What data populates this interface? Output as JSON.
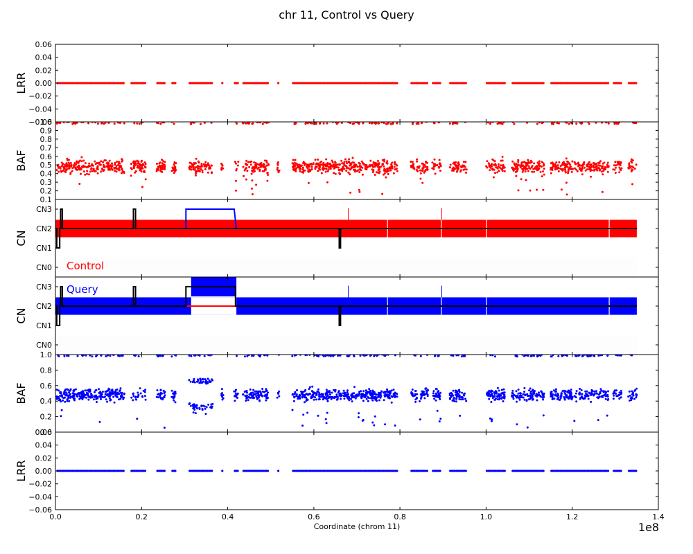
{
  "figure": {
    "title": "chr 11, Control vs Query",
    "xlabel": "Coordinate (chrom 11)",
    "x_offset_label": "1e8",
    "x_ticks": [
      "0.0",
      "0.2",
      "0.4",
      "0.6",
      "0.8",
      "1.0",
      "1.2",
      "1.4"
    ]
  },
  "colors": {
    "control": "#ff0000",
    "query": "#0000ff",
    "consensus": "#000000"
  },
  "chart_data": [
    {
      "name": "control-lrr",
      "type": "scatter",
      "ylabel": "LRR",
      "color": "#ff0000",
      "ylim": [
        -0.06,
        0.06
      ],
      "yticks": [
        "−0.06",
        "−0.04",
        "−0.02",
        "0.00",
        "0.02",
        "0.04",
        "0.06"
      ],
      "xlim": [
        0,
        140000000
      ],
      "value": 0.0
    },
    {
      "name": "control-baf",
      "type": "scatter",
      "ylabel": "BAF",
      "color": "#ff0000",
      "ylim": [
        0.1,
        1.0
      ],
      "yticks": [
        "0.1",
        "0.2",
        "0.3",
        "0.4",
        "0.5",
        "0.6",
        "0.7",
        "0.8",
        "0.9",
        "1.0"
      ],
      "xlim": [
        0,
        140000000
      ],
      "center": 0.48
    },
    {
      "name": "control-cn",
      "type": "area",
      "ylabel": "CN",
      "label": "Control",
      "color": "#ff0000",
      "ylim": [
        -0.5,
        3.5
      ],
      "yticks": [
        "CN0",
        "CN1",
        "CN2",
        "CN3"
      ],
      "xlim": [
        0,
        140000000
      ],
      "band": [
        1.55,
        2.45
      ],
      "consensus": [
        {
          "x": 0,
          "y": 2
        },
        {
          "x": 300000,
          "y": 2
        },
        {
          "x": 300000,
          "y": 1
        },
        {
          "x": 1000000,
          "y": 1
        },
        {
          "x": 1000000,
          "y": 2
        },
        {
          "x": 1200000,
          "y": 2
        },
        {
          "x": 1200000,
          "y": 3
        },
        {
          "x": 1600000,
          "y": 3
        },
        {
          "x": 1600000,
          "y": 2
        },
        {
          "x": 18100000,
          "y": 2
        },
        {
          "x": 18100000,
          "y": 3
        },
        {
          "x": 18600000,
          "y": 3
        },
        {
          "x": 18600000,
          "y": 2
        },
        {
          "x": 65900000,
          "y": 2
        },
        {
          "x": 65900000,
          "y": 1
        },
        {
          "x": 66200000,
          "y": 1
        },
        {
          "x": 66200000,
          "y": 2
        },
        {
          "x": 135000000,
          "y": 2
        }
      ],
      "state": [
        {
          "x": 30300000,
          "y": 2
        },
        {
          "x": 30300000,
          "y": 3
        },
        {
          "x": 41500000,
          "y": 3
        },
        {
          "x": 42000000,
          "y": 2
        }
      ]
    },
    {
      "name": "query-cn",
      "type": "area",
      "ylabel": "CN",
      "label": "Query",
      "color": "#0000ff",
      "ylim": [
        -0.5,
        3.5
      ],
      "yticks": [
        "CN0",
        "CN1",
        "CN2",
        "CN3"
      ],
      "xlim": [
        0,
        140000000
      ],
      "band": [
        1.55,
        2.45
      ],
      "amplified": [
        31500000,
        42000000
      ],
      "consensus": [
        {
          "x": 0,
          "y": 2
        },
        {
          "x": 300000,
          "y": 2
        },
        {
          "x": 300000,
          "y": 1
        },
        {
          "x": 1000000,
          "y": 1
        },
        {
          "x": 1000000,
          "y": 2
        },
        {
          "x": 1200000,
          "y": 2
        },
        {
          "x": 1200000,
          "y": 3
        },
        {
          "x": 1600000,
          "y": 3
        },
        {
          "x": 1600000,
          "y": 2
        },
        {
          "x": 18100000,
          "y": 2
        },
        {
          "x": 18100000,
          "y": 3
        },
        {
          "x": 18600000,
          "y": 3
        },
        {
          "x": 18600000,
          "y": 2
        },
        {
          "x": 30300000,
          "y": 2
        },
        {
          "x": 30300000,
          "y": 3
        },
        {
          "x": 41800000,
          "y": 3
        },
        {
          "x": 41800000,
          "y": 2
        },
        {
          "x": 65900000,
          "y": 2
        },
        {
          "x": 65900000,
          "y": 1
        },
        {
          "x": 66200000,
          "y": 1
        },
        {
          "x": 66200000,
          "y": 2
        },
        {
          "x": 135000000,
          "y": 2
        }
      ],
      "state": [
        {
          "x": 30300000,
          "y": 2
        },
        {
          "x": 42000000,
          "y": 2
        }
      ]
    },
    {
      "name": "query-baf",
      "type": "scatter",
      "ylabel": "BAF",
      "color": "#0000ff",
      "ylim": [
        0.0,
        1.0
      ],
      "yticks": [
        "0.0",
        "0.2",
        "0.4",
        "0.6",
        "0.8",
        "1.0"
      ],
      "xlim": [
        0,
        140000000
      ],
      "center": 0.48
    },
    {
      "name": "query-lrr",
      "type": "scatter",
      "ylabel": "LRR",
      "color": "#0000ff",
      "ylim": [
        -0.06,
        0.06
      ],
      "yticks": [
        "−0.06",
        "−0.04",
        "−0.02",
        "0.00",
        "0.02",
        "0.04",
        "0.06"
      ],
      "xlim": [
        0,
        140000000
      ],
      "value": 0.0
    }
  ],
  "probe_segments": [
    [
      300000,
      16000000
    ],
    [
      17500000,
      21000000
    ],
    [
      23500000,
      25500000
    ],
    [
      27000000,
      28000000
    ],
    [
      31000000,
      36500000
    ],
    [
      38500000,
      39000000
    ],
    [
      41500000,
      42500000
    ],
    [
      43500000,
      49500000
    ],
    [
      51500000,
      52000000
    ],
    [
      55000000,
      79500000
    ],
    [
      82500000,
      86500000
    ],
    [
      87500000,
      89500000
    ],
    [
      91500000,
      95500000
    ],
    [
      100000000,
      104500000
    ],
    [
      106000000,
      113500000
    ],
    [
      115000000,
      128500000
    ],
    [
      129500000,
      131500000
    ],
    [
      133000000,
      135000000
    ]
  ]
}
